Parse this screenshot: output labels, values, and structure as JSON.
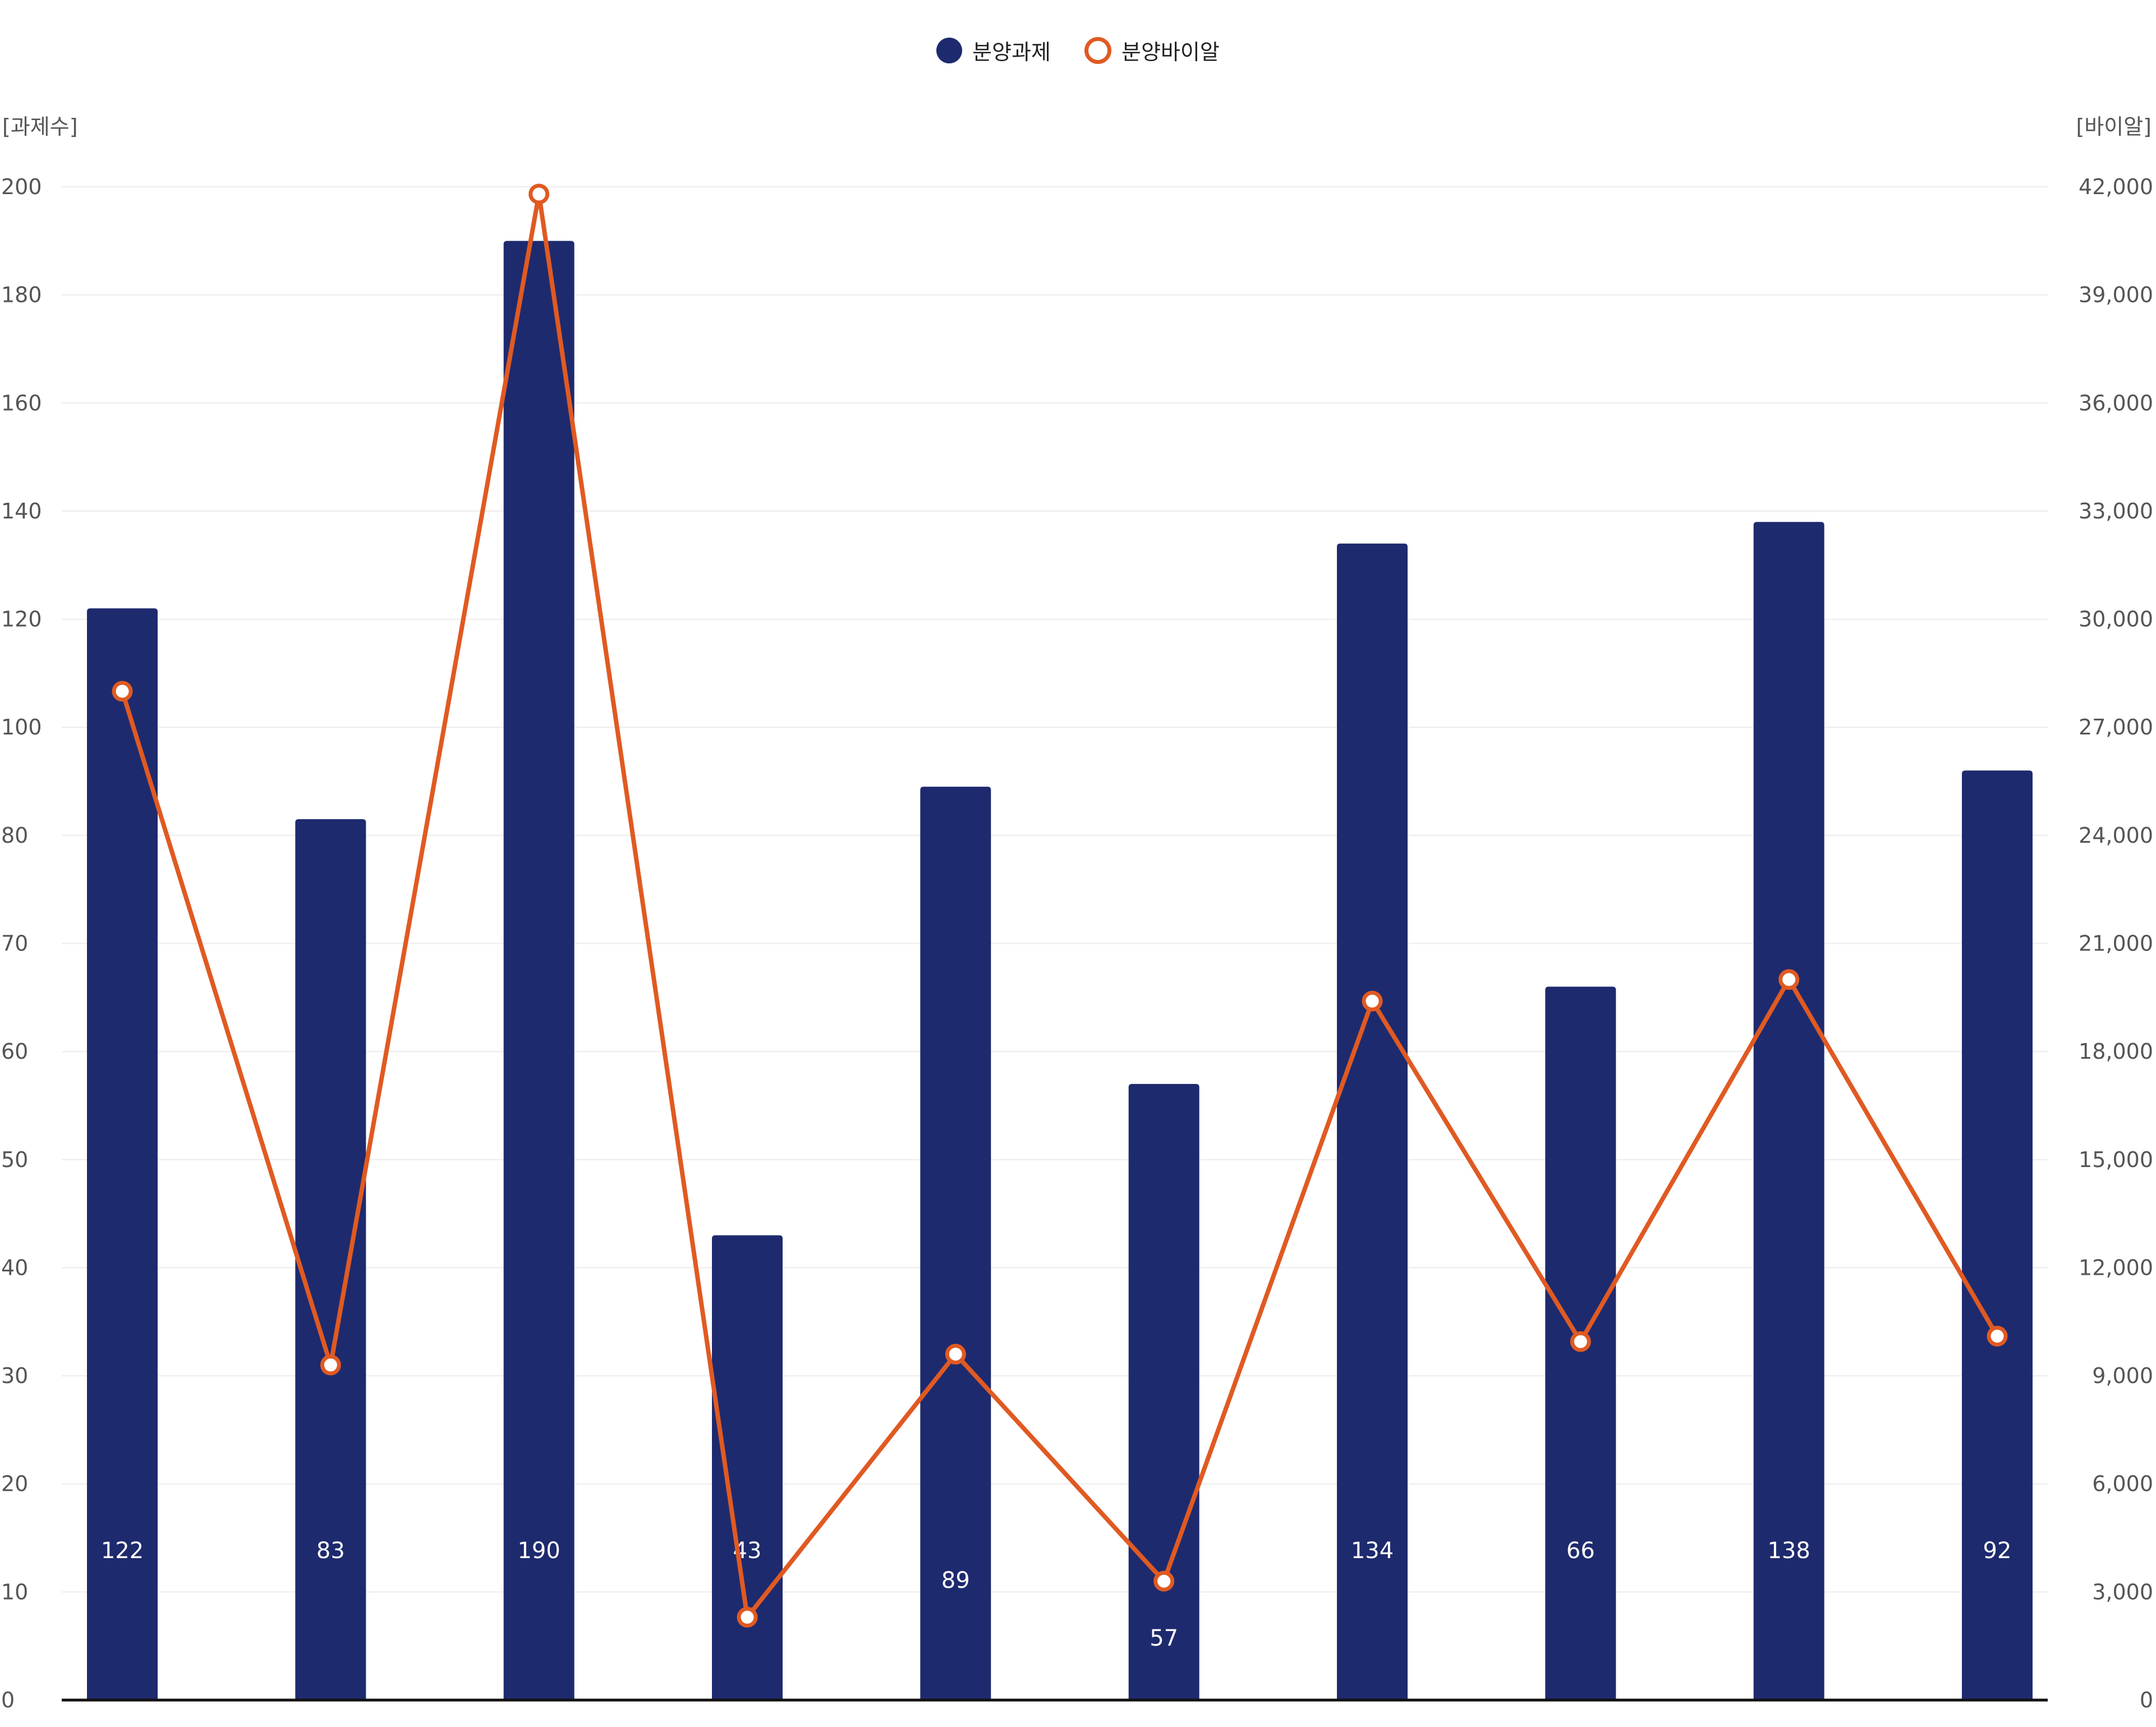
{
  "chart_data": {
    "type": "bar",
    "categories": [
      "",
      "",
      "",
      "",
      "",
      "",
      "",
      "",
      "",
      ""
    ],
    "left_axis": {
      "unit": "[과제수]",
      "ticks": [
        0,
        10,
        20,
        30,
        40,
        50,
        60,
        70,
        80,
        100,
        120,
        140,
        160,
        180,
        200
      ]
    },
    "right_axis": {
      "unit": "[바이알]",
      "ticks": [
        "0",
        "3,000",
        "6,000",
        "9,000",
        "12,000",
        "15,000",
        "18,000",
        "21,000",
        "24,000",
        "27,000",
        "30,000",
        "33,000",
        "36,000",
        "39,000",
        "42,000"
      ],
      "ylim": [
        0,
        42000
      ]
    },
    "series": [
      {
        "name": "분양과제",
        "type": "bar",
        "axis": "left",
        "color": "#1e2a6e",
        "values": [
          122,
          83,
          190,
          43,
          89,
          57,
          134,
          66,
          138,
          92
        ],
        "labels": [
          "122",
          "83",
          "190",
          "43",
          "89",
          "57",
          "134",
          "66",
          "138",
          "92"
        ]
      },
      {
        "name": "분양바이알",
        "type": "line",
        "axis": "right",
        "color": "#e05a22",
        "values": [
          28000,
          9300,
          41800,
          2300,
          9600,
          3300,
          19400,
          9950,
          20000,
          10100
        ]
      }
    ],
    "grid": true,
    "legend": "top-center"
  }
}
